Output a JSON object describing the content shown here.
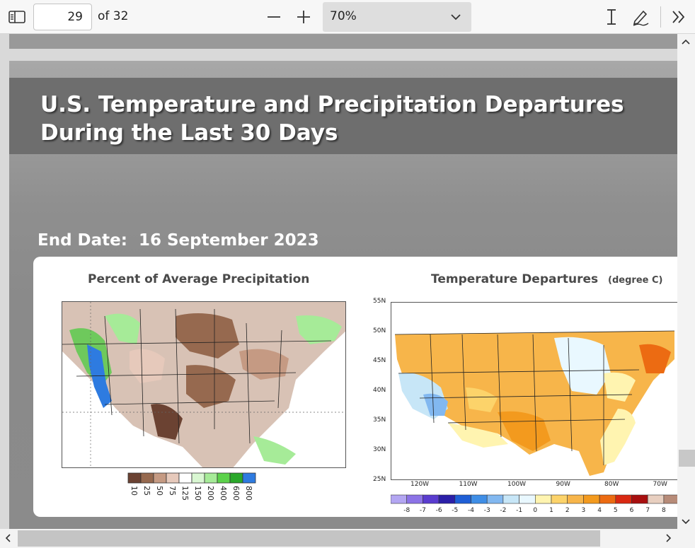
{
  "toolbar": {
    "page_number": "29",
    "page_total": "of 32",
    "zoom_value": "70%",
    "icons": [
      "sidebar-toggle-icon",
      "zoom-out-icon",
      "zoom-in-icon",
      "chevron-down-icon",
      "text-cursor-icon",
      "draw-icon",
      "more-tools-icon"
    ]
  },
  "slide": {
    "title": "U.S. Temperature and Precipitation Departures During the Last 30 Days",
    "end_date": "End Date:  16 September 2023"
  },
  "precip_map": {
    "title": "Percent of Average Precipitation",
    "legend": [
      {
        "label": "10",
        "color": "#6b4232"
      },
      {
        "label": "25",
        "color": "#96694f"
      },
      {
        "label": "50",
        "color": "#c59a83"
      },
      {
        "label": "75",
        "color": "#e6c9bb"
      },
      {
        "label": "125",
        "color": "#ffffff"
      },
      {
        "label": "150",
        "color": "#d9f7d2"
      },
      {
        "label": "200",
        "color": "#a6eb98"
      },
      {
        "label": "400",
        "color": "#5cd24b"
      },
      {
        "label": "600",
        "color": "#2aa82a"
      },
      {
        "label": "800",
        "color": "#2e7be0"
      }
    ]
  },
  "temp_map": {
    "title": "Temperature Departures",
    "subtitle": "(degree C)",
    "lat_labels": [
      "55N",
      "50N",
      "45N",
      "40N",
      "35N",
      "30N",
      "25N"
    ],
    "lon_labels": [
      "120W",
      "110W",
      "100W",
      "90W",
      "80W",
      "70W"
    ],
    "legend": [
      {
        "label": "-8",
        "color": "#b3a6f2"
      },
      {
        "label": "-7",
        "color": "#8c73e6"
      },
      {
        "label": "-6",
        "color": "#5a3ccf"
      },
      {
        "label": "-5",
        "color": "#2b1fa8"
      },
      {
        "label": "-4",
        "color": "#1f5fd6"
      },
      {
        "label": "-3",
        "color": "#3f8ee6"
      },
      {
        "label": "-2",
        "color": "#82b8f0"
      },
      {
        "label": "-1",
        "color": "#c7e6f7"
      },
      {
        "label": "0",
        "color": "#e9f8ff"
      },
      {
        "label": "1",
        "color": "#fff4b0"
      },
      {
        "label": "2",
        "color": "#fcd36a"
      },
      {
        "label": "3",
        "color": "#f7b54a"
      },
      {
        "label": "4",
        "color": "#f39a1e"
      },
      {
        "label": "5",
        "color": "#ec6b12"
      },
      {
        "label": "6",
        "color": "#d92912"
      },
      {
        "label": "7",
        "color": "#a80f0f"
      },
      {
        "label": "8",
        "color": "#e8cfc0"
      },
      {
        "label": "",
        "color": "#b78b78"
      },
      {
        "label": "",
        "color": "#7a4e3e"
      }
    ]
  },
  "colors": {
    "toolbar_bg": "#f7f7f7",
    "slide_title_band": "#6e6e6e",
    "slide_bg": "#8b8b8b"
  }
}
